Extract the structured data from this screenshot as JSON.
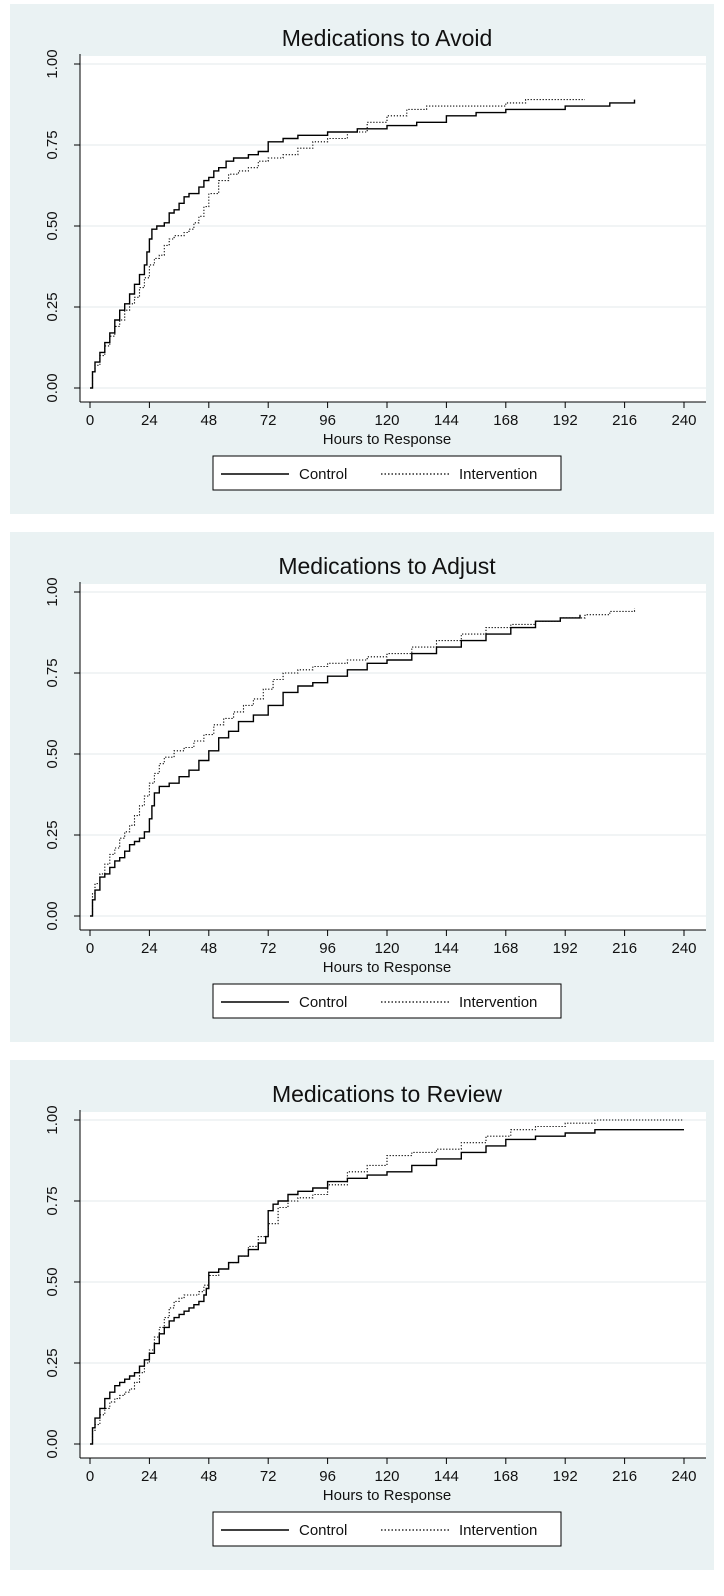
{
  "chart_data": [
    {
      "type": "line",
      "title": "Medications to Avoid",
      "xlabel": "Hours to Response",
      "ylabel": "",
      "xlim": [
        0,
        240
      ],
      "ylim": [
        0,
        1
      ],
      "xticks": [
        0,
        24,
        48,
        72,
        96,
        120,
        144,
        168,
        192,
        216,
        240
      ],
      "yticks": [
        "0.00",
        "0.25",
        "0.50",
        "0.75",
        "1.00"
      ],
      "grid": true,
      "legend_position": "bottom",
      "series": [
        {
          "name": "Control",
          "style": "solid",
          "color": "#000000",
          "x": [
            0,
            1,
            2,
            4,
            6,
            8,
            10,
            12,
            14,
            16,
            18,
            20,
            22,
            23,
            24,
            25,
            27,
            30,
            32,
            34,
            36,
            38,
            40,
            42,
            44,
            46,
            48,
            50,
            52,
            55,
            58,
            60,
            64,
            68,
            72,
            78,
            84,
            90,
            96,
            108,
            120,
            132,
            144,
            156,
            168,
            180,
            192,
            200,
            210,
            220
          ],
          "y": [
            0.0,
            0.05,
            0.08,
            0.11,
            0.14,
            0.17,
            0.21,
            0.24,
            0.26,
            0.29,
            0.32,
            0.35,
            0.38,
            0.42,
            0.46,
            0.49,
            0.5,
            0.51,
            0.54,
            0.55,
            0.57,
            0.59,
            0.6,
            0.6,
            0.62,
            0.64,
            0.65,
            0.67,
            0.68,
            0.7,
            0.71,
            0.71,
            0.72,
            0.73,
            0.76,
            0.77,
            0.78,
            0.78,
            0.79,
            0.8,
            0.81,
            0.82,
            0.84,
            0.85,
            0.86,
            0.86,
            0.87,
            0.87,
            0.88,
            0.89
          ]
        },
        {
          "name": "Intervention",
          "style": "dotted",
          "color": "#000000",
          "x": [
            0,
            1,
            2,
            4,
            6,
            8,
            10,
            12,
            14,
            16,
            18,
            20,
            22,
            24,
            26,
            28,
            30,
            32,
            34,
            36,
            38,
            40,
            42,
            44,
            46,
            48,
            52,
            56,
            60,
            64,
            68,
            72,
            78,
            84,
            90,
            96,
            104,
            112,
            120,
            128,
            136,
            144,
            152,
            160,
            168,
            176,
            184,
            192,
            200
          ],
          "y": [
            0.0,
            0.05,
            0.07,
            0.1,
            0.13,
            0.16,
            0.19,
            0.21,
            0.24,
            0.26,
            0.28,
            0.31,
            0.34,
            0.38,
            0.4,
            0.41,
            0.44,
            0.46,
            0.47,
            0.47,
            0.48,
            0.49,
            0.51,
            0.53,
            0.56,
            0.6,
            0.64,
            0.66,
            0.67,
            0.68,
            0.7,
            0.71,
            0.72,
            0.74,
            0.76,
            0.77,
            0.79,
            0.82,
            0.84,
            0.86,
            0.87,
            0.87,
            0.87,
            0.87,
            0.88,
            0.89,
            0.89,
            0.89,
            0.89
          ]
        }
      ]
    },
    {
      "type": "line",
      "title": "Medications to Adjust",
      "xlabel": "Hours to Response",
      "ylabel": "",
      "xlim": [
        0,
        240
      ],
      "ylim": [
        0,
        1
      ],
      "xticks": [
        0,
        24,
        48,
        72,
        96,
        120,
        144,
        168,
        192,
        216,
        240
      ],
      "yticks": [
        "0.00",
        "0.25",
        "0.50",
        "0.75",
        "1.00"
      ],
      "grid": true,
      "legend_position": "bottom",
      "series": [
        {
          "name": "Control",
          "style": "solid",
          "color": "#000000",
          "x": [
            0,
            1,
            2,
            4,
            6,
            8,
            10,
            12,
            14,
            16,
            18,
            20,
            22,
            24,
            25,
            26,
            28,
            32,
            36,
            40,
            44,
            48,
            52,
            56,
            60,
            66,
            72,
            78,
            84,
            90,
            96,
            104,
            112,
            120,
            130,
            140,
            150,
            160,
            170,
            180,
            190,
            198
          ],
          "y": [
            0.0,
            0.05,
            0.08,
            0.12,
            0.13,
            0.15,
            0.17,
            0.18,
            0.2,
            0.22,
            0.23,
            0.24,
            0.26,
            0.3,
            0.34,
            0.38,
            0.4,
            0.41,
            0.43,
            0.45,
            0.48,
            0.51,
            0.55,
            0.57,
            0.6,
            0.62,
            0.65,
            0.69,
            0.71,
            0.72,
            0.74,
            0.76,
            0.78,
            0.79,
            0.81,
            0.83,
            0.85,
            0.87,
            0.89,
            0.91,
            0.92,
            0.93
          ]
        },
        {
          "name": "Intervention",
          "style": "dotted",
          "color": "#000000",
          "x": [
            0,
            1,
            2,
            4,
            6,
            8,
            10,
            12,
            14,
            16,
            18,
            20,
            22,
            24,
            26,
            28,
            30,
            34,
            38,
            42,
            46,
            50,
            54,
            58,
            62,
            66,
            70,
            74,
            78,
            84,
            90,
            96,
            104,
            112,
            120,
            130,
            140,
            150,
            160,
            170,
            180,
            190,
            200,
            210,
            220
          ],
          "y": [
            0.0,
            0.07,
            0.1,
            0.13,
            0.16,
            0.19,
            0.21,
            0.24,
            0.26,
            0.28,
            0.31,
            0.34,
            0.37,
            0.41,
            0.44,
            0.47,
            0.49,
            0.51,
            0.52,
            0.54,
            0.56,
            0.59,
            0.61,
            0.63,
            0.65,
            0.67,
            0.7,
            0.73,
            0.75,
            0.76,
            0.77,
            0.78,
            0.79,
            0.8,
            0.81,
            0.83,
            0.85,
            0.87,
            0.89,
            0.9,
            0.91,
            0.92,
            0.93,
            0.94,
            0.95
          ]
        }
      ]
    },
    {
      "type": "line",
      "title": "Medications to Review",
      "xlabel": "Hours to Response",
      "ylabel": "",
      "xlim": [
        0,
        240
      ],
      "ylim": [
        0,
        1
      ],
      "xticks": [
        0,
        24,
        48,
        72,
        96,
        120,
        144,
        168,
        192,
        216,
        240
      ],
      "yticks": [
        "0.00",
        "0.25",
        "0.50",
        "0.75",
        "1.00"
      ],
      "grid": true,
      "legend_position": "bottom",
      "series": [
        {
          "name": "Control",
          "style": "solid",
          "color": "#000000",
          "x": [
            0,
            1,
            2,
            4,
            6,
            8,
            10,
            12,
            14,
            16,
            18,
            20,
            22,
            24,
            26,
            28,
            30,
            32,
            34,
            36,
            38,
            40,
            42,
            44,
            46,
            47,
            48,
            52,
            56,
            60,
            64,
            68,
            71,
            72,
            74,
            76,
            80,
            84,
            90,
            96,
            104,
            112,
            120,
            130,
            140,
            150,
            160,
            168,
            180,
            192,
            204,
            216,
            228,
            240
          ],
          "y": [
            0.0,
            0.05,
            0.08,
            0.11,
            0.14,
            0.16,
            0.18,
            0.19,
            0.2,
            0.21,
            0.22,
            0.24,
            0.26,
            0.28,
            0.31,
            0.34,
            0.36,
            0.38,
            0.39,
            0.4,
            0.41,
            0.42,
            0.43,
            0.44,
            0.46,
            0.48,
            0.53,
            0.54,
            0.56,
            0.58,
            0.6,
            0.62,
            0.64,
            0.72,
            0.74,
            0.75,
            0.77,
            0.78,
            0.79,
            0.81,
            0.82,
            0.83,
            0.84,
            0.86,
            0.88,
            0.9,
            0.92,
            0.94,
            0.95,
            0.96,
            0.97,
            0.97,
            0.97,
            0.97
          ]
        },
        {
          "name": "Intervention",
          "style": "dotted",
          "color": "#000000",
          "x": [
            0,
            1,
            2,
            4,
            6,
            8,
            10,
            12,
            14,
            16,
            18,
            20,
            22,
            24,
            26,
            28,
            30,
            32,
            34,
            36,
            38,
            40,
            42,
            44,
            46,
            48,
            52,
            56,
            60,
            64,
            68,
            72,
            76,
            80,
            84,
            90,
            96,
            104,
            112,
            120,
            130,
            140,
            150,
            160,
            170,
            180,
            192,
            204,
            216,
            228,
            240
          ],
          "y": [
            0.0,
            0.04,
            0.06,
            0.09,
            0.11,
            0.13,
            0.14,
            0.15,
            0.16,
            0.17,
            0.19,
            0.22,
            0.25,
            0.29,
            0.33,
            0.36,
            0.39,
            0.42,
            0.44,
            0.45,
            0.46,
            0.46,
            0.46,
            0.47,
            0.49,
            0.52,
            0.54,
            0.56,
            0.58,
            0.61,
            0.64,
            0.68,
            0.73,
            0.75,
            0.76,
            0.77,
            0.8,
            0.84,
            0.86,
            0.89,
            0.9,
            0.91,
            0.93,
            0.95,
            0.97,
            0.98,
            0.99,
            1.0,
            1.0,
            1.0,
            1.0
          ]
        }
      ]
    }
  ]
}
